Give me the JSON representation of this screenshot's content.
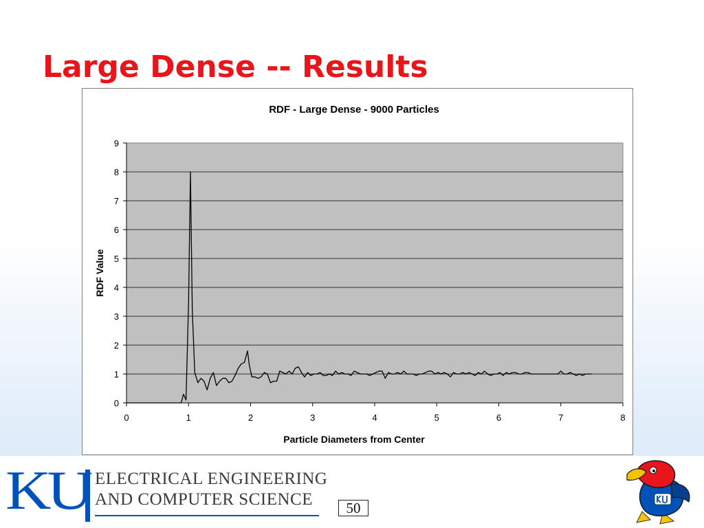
{
  "slide": {
    "title": "Large Dense -- Results",
    "page_number": "50"
  },
  "footer": {
    "logo_text": "KU",
    "department_line1": "ELECTRICAL ENGINEERING",
    "department_line2": "AND COMPUTER SCIENCE",
    "mascot_icon": "jayhawk-mascot-icon",
    "brand_blue": "#0051ba",
    "title_red": "#e8151b"
  },
  "chart_data": {
    "type": "line",
    "title": "RDF - Large Dense - 9000 Particles",
    "xlabel": "Particle Diameters from Center",
    "ylabel": "RDF Value",
    "xlim": [
      0,
      8
    ],
    "ylim": [
      0,
      9
    ],
    "xticks": [
      0,
      1,
      2,
      3,
      4,
      5,
      6,
      7,
      8
    ],
    "yticks": [
      0,
      1,
      2,
      3,
      4,
      5,
      6,
      7,
      8,
      9
    ],
    "grid": "horizontal",
    "plot_background": "#c0c0c0",
    "line_color": "#000000",
    "legend": "none",
    "series": [
      {
        "x": [
          0,
          0.1,
          0.2,
          0.3,
          0.4,
          0.5,
          0.6,
          0.7,
          0.8,
          0.88,
          0.92,
          0.96,
          1.0,
          1.03,
          1.06,
          1.1,
          1.15,
          1.2,
          1.25,
          1.3,
          1.35,
          1.4,
          1.45,
          1.5,
          1.55,
          1.6,
          1.65,
          1.7,
          1.75,
          1.8,
          1.85,
          1.9,
          1.95,
          1.98,
          2.02,
          2.07,
          2.12,
          2.17,
          2.22,
          2.27,
          2.32,
          2.37,
          2.42,
          2.47,
          2.52,
          2.57,
          2.62,
          2.67,
          2.72,
          2.77,
          2.82,
          2.87,
          2.92,
          2.97,
          3.02,
          3.07,
          3.12,
          3.17,
          3.22,
          3.27,
          3.32,
          3.37,
          3.42,
          3.47,
          3.52,
          3.57,
          3.62,
          3.67,
          3.72,
          3.77,
          3.82,
          3.87,
          3.92,
          3.97,
          4.02,
          4.07,
          4.12,
          4.17,
          4.22,
          4.27,
          4.32,
          4.37,
          4.42,
          4.47,
          4.52,
          4.57,
          4.62,
          4.67,
          4.72,
          4.77,
          4.82,
          4.87,
          4.92,
          4.97,
          5.02,
          5.07,
          5.12,
          5.17,
          5.22,
          5.27,
          5.32,
          5.37,
          5.42,
          5.47,
          5.52,
          5.57,
          5.62,
          5.67,
          5.72,
          5.77,
          5.82,
          5.87,
          5.92,
          5.97,
          6.02,
          6.07,
          6.12,
          6.17,
          6.22,
          6.27,
          6.32,
          6.37,
          6.42,
          6.47,
          6.52,
          6.6,
          6.7,
          6.8,
          6.9,
          6.95,
          7.0,
          7.05,
          7.1,
          7.15,
          7.2,
          7.25,
          7.3,
          7.35,
          7.4,
          7.45,
          7.5
        ],
        "y": [
          0,
          0,
          0,
          0,
          0,
          0,
          0,
          0,
          0,
          0,
          0.3,
          0.1,
          3.5,
          8.0,
          3.2,
          1.05,
          0.7,
          0.85,
          0.75,
          0.45,
          0.85,
          1.05,
          0.6,
          0.75,
          0.85,
          0.85,
          0.7,
          0.75,
          0.95,
          1.2,
          1.35,
          1.4,
          1.8,
          1.3,
          0.9,
          0.9,
          0.85,
          0.9,
          1.05,
          1.0,
          0.7,
          0.75,
          0.75,
          1.1,
          1.05,
          1.0,
          1.1,
          1.0,
          1.2,
          1.25,
          1.05,
          0.9,
          1.05,
          0.95,
          1.0,
          1.0,
          1.05,
          0.95,
          0.95,
          1.0,
          0.95,
          1.1,
          1.0,
          1.05,
          1.0,
          1.0,
          0.95,
          1.1,
          1.05,
          1.0,
          1.0,
          1.0,
          0.95,
          1.0,
          1.05,
          1.1,
          1.1,
          0.85,
          1.05,
          1.0,
          1.0,
          1.05,
          1.0,
          1.1,
          1.0,
          1.0,
          1.0,
          0.95,
          1.0,
          1.0,
          1.05,
          1.1,
          1.1,
          1.0,
          1.05,
          1.0,
          1.05,
          1.0,
          0.9,
          1.05,
          1.0,
          1.0,
          1.05,
          1.0,
          1.05,
          1.0,
          0.95,
          1.05,
          1.0,
          1.1,
          1.0,
          0.95,
          1.0,
          1.0,
          1.05,
          0.95,
          1.05,
          1.0,
          1.05,
          1.05,
          1.0,
          1.0,
          1.05,
          1.05,
          1.0,
          1.0,
          1.0,
          1.0,
          1.0,
          1.0,
          1.1,
          1.0,
          1.0,
          1.05,
          1.0,
          0.95,
          1.0,
          0.95,
          1.0,
          1.0,
          1.0
        ]
      }
    ]
  }
}
